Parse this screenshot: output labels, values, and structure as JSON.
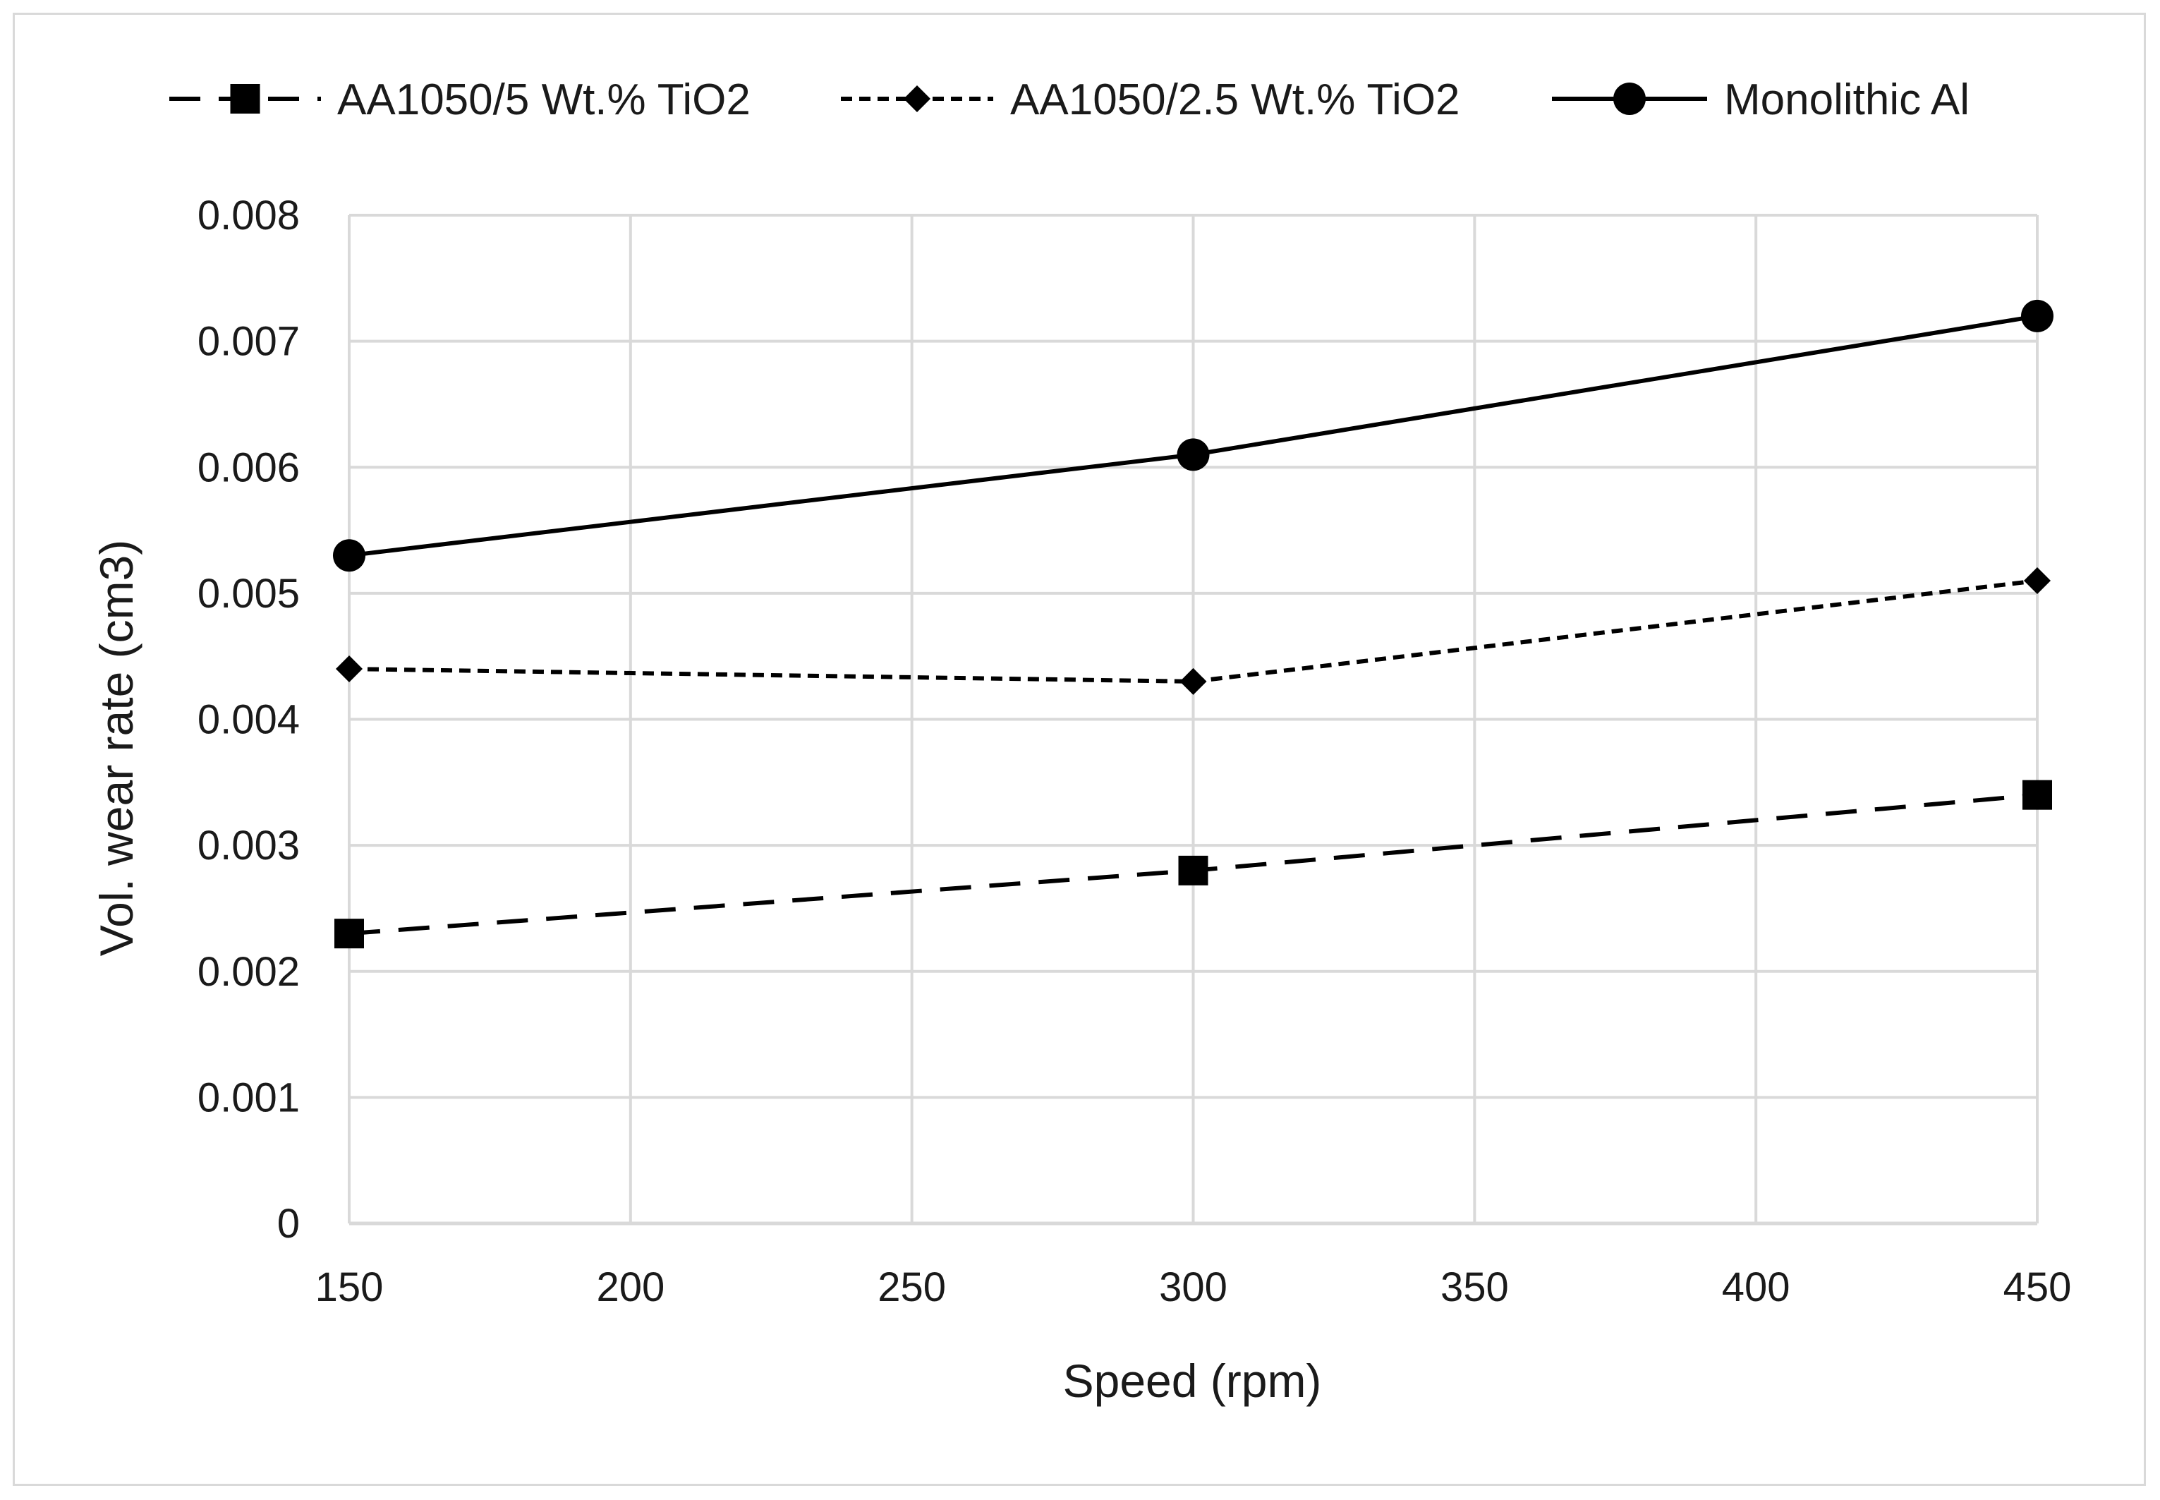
{
  "chart_data": {
    "type": "line",
    "title": "",
    "xlabel": "Speed (rpm)",
    "ylabel": "Vol. wear rate (cm3)",
    "xlim": [
      150,
      450
    ],
    "ylim": [
      0,
      0.008
    ],
    "xticks": [
      "150",
      "200",
      "250",
      "300",
      "350",
      "400",
      "450"
    ],
    "yticks": [
      "0",
      "0.001",
      "0.002",
      "0.003",
      "0.004",
      "0.005",
      "0.006",
      "0.007",
      "0.008"
    ],
    "grid": true,
    "legend_position": "top",
    "series": [
      {
        "name": "AA1050/5 Wt.% TiO2",
        "marker": "square",
        "line": "long-dash",
        "x": [
          150,
          300,
          450
        ],
        "values": [
          0.0023,
          0.0028,
          0.0034
        ]
      },
      {
        "name": "AA1050/2.5 Wt.% TiO2",
        "marker": "diamond",
        "line": "short-dash",
        "x": [
          150,
          300,
          450
        ],
        "values": [
          0.0044,
          0.0043,
          0.0051
        ]
      },
      {
        "name": "Monolithic Al",
        "marker": "circle",
        "line": "solid",
        "x": [
          150,
          300,
          450
        ],
        "values": [
          0.0053,
          0.0061,
          0.0072
        ]
      }
    ],
    "colors": {
      "series": "#000000",
      "grid": "#d9d9d9",
      "text": "#1a1a1a"
    }
  }
}
